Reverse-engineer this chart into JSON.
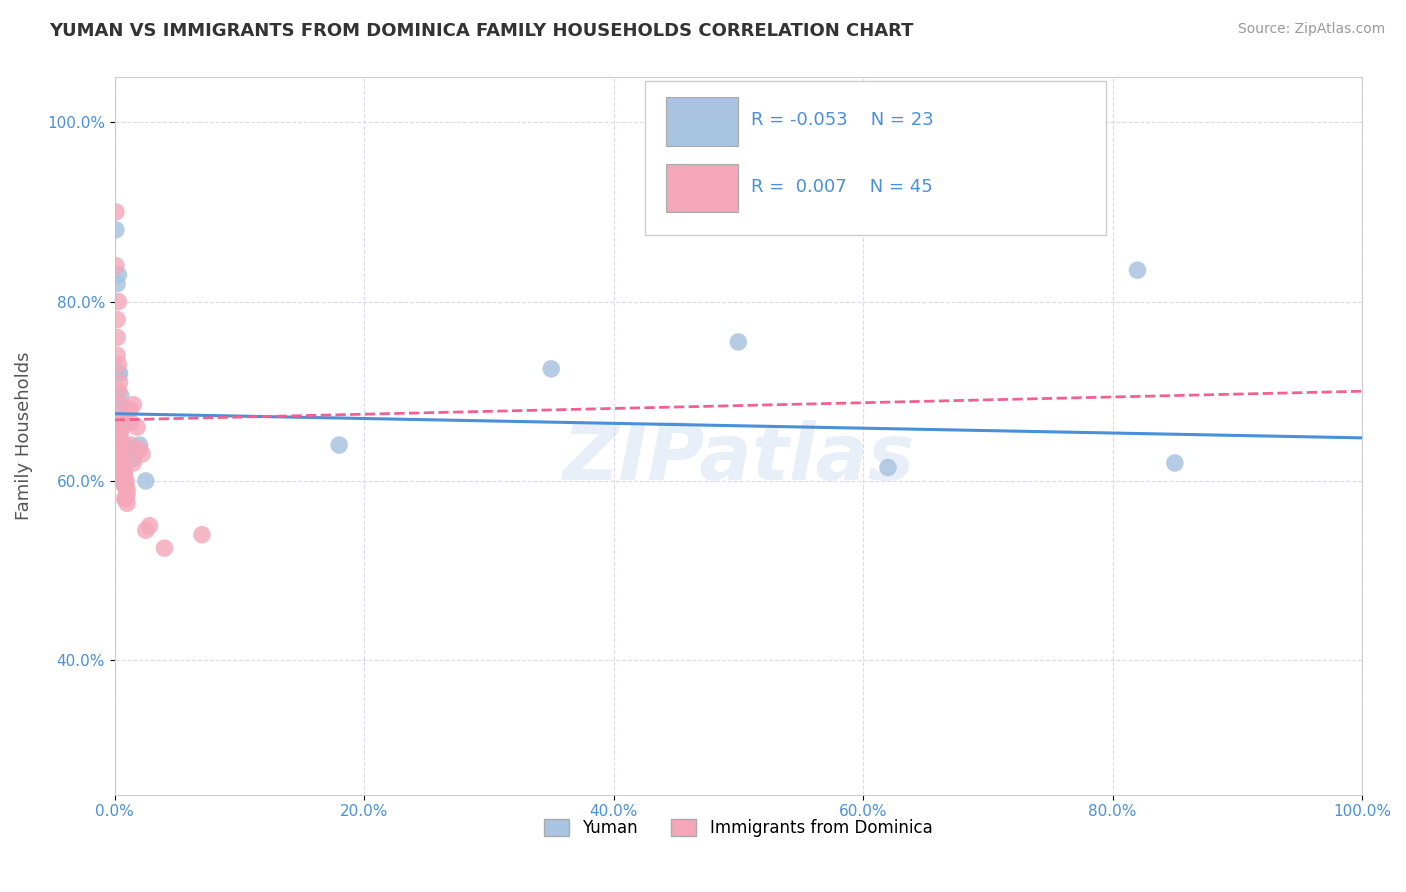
{
  "title": "YUMAN VS IMMIGRANTS FROM DOMINICA FAMILY HOUSEHOLDS CORRELATION CHART",
  "source": "Source: ZipAtlas.com",
  "ylabel": "Family Households",
  "xlabel": "",
  "r_yuman": -0.053,
  "n_yuman": 23,
  "r_dominica": 0.007,
  "n_dominica": 45,
  "xlim": [
    0,
    1.0
  ],
  "ylim": [
    0.25,
    1.05
  ],
  "xticks": [
    0,
    0.2,
    0.4,
    0.6,
    0.8,
    1.0
  ],
  "yticks": [
    0.4,
    0.6,
    0.8,
    1.0
  ],
  "xticklabels": [
    "0.0%",
    "20.0%",
    "40.0%",
    "60.0%",
    "80.0%",
    "100.0%"
  ],
  "yticklabels": [
    "40.0%",
    "60.0%",
    "80.0%",
    "100.0%"
  ],
  "color_yuman": "#a8c4e0",
  "color_dominica": "#f4a7b9",
  "trendline_yuman_color": "#4a90d9",
  "trendline_dominica_color": "#f06090",
  "background": "#ffffff",
  "watermark": "ZIPatlas",
  "trendline_yuman_start": 0.675,
  "trendline_yuman_end": 0.648,
  "trendline_dominica_start": 0.668,
  "trendline_dominica_end": 0.7,
  "yuman_x": [
    0.001,
    0.002,
    0.003,
    0.004,
    0.005,
    0.006,
    0.007,
    0.008,
    0.009,
    0.01,
    0.012,
    0.015,
    0.02,
    0.025,
    0.18,
    0.35,
    0.5,
    0.62,
    0.82,
    0.85,
    0.003,
    0.005,
    0.008
  ],
  "yuman_y": [
    0.88,
    0.82,
    0.83,
    0.72,
    0.695,
    0.68,
    0.665,
    0.64,
    0.635,
    0.63,
    0.625,
    0.625,
    0.64,
    0.6,
    0.64,
    0.725,
    0.755,
    0.615,
    0.835,
    0.62,
    0.72,
    0.66,
    0.595
  ],
  "dominica_x": [
    0.001,
    0.001,
    0.002,
    0.002,
    0.002,
    0.003,
    0.003,
    0.003,
    0.004,
    0.004,
    0.004,
    0.004,
    0.005,
    0.005,
    0.005,
    0.005,
    0.006,
    0.006,
    0.006,
    0.007,
    0.007,
    0.007,
    0.007,
    0.008,
    0.008,
    0.008,
    0.008,
    0.009,
    0.009,
    0.009,
    0.01,
    0.01,
    0.01,
    0.012,
    0.013,
    0.013,
    0.015,
    0.015,
    0.018,
    0.02,
    0.022,
    0.025,
    0.028,
    0.04,
    0.07
  ],
  "dominica_y": [
    0.9,
    0.84,
    0.78,
    0.76,
    0.74,
    0.8,
    0.73,
    0.7,
    0.71,
    0.685,
    0.665,
    0.65,
    0.67,
    0.655,
    0.64,
    0.635,
    0.63,
    0.62,
    0.61,
    0.62,
    0.615,
    0.61,
    0.6,
    0.61,
    0.605,
    0.595,
    0.58,
    0.6,
    0.595,
    0.58,
    0.59,
    0.585,
    0.575,
    0.68,
    0.665,
    0.64,
    0.685,
    0.62,
    0.66,
    0.635,
    0.63,
    0.545,
    0.55,
    0.525,
    0.54
  ]
}
